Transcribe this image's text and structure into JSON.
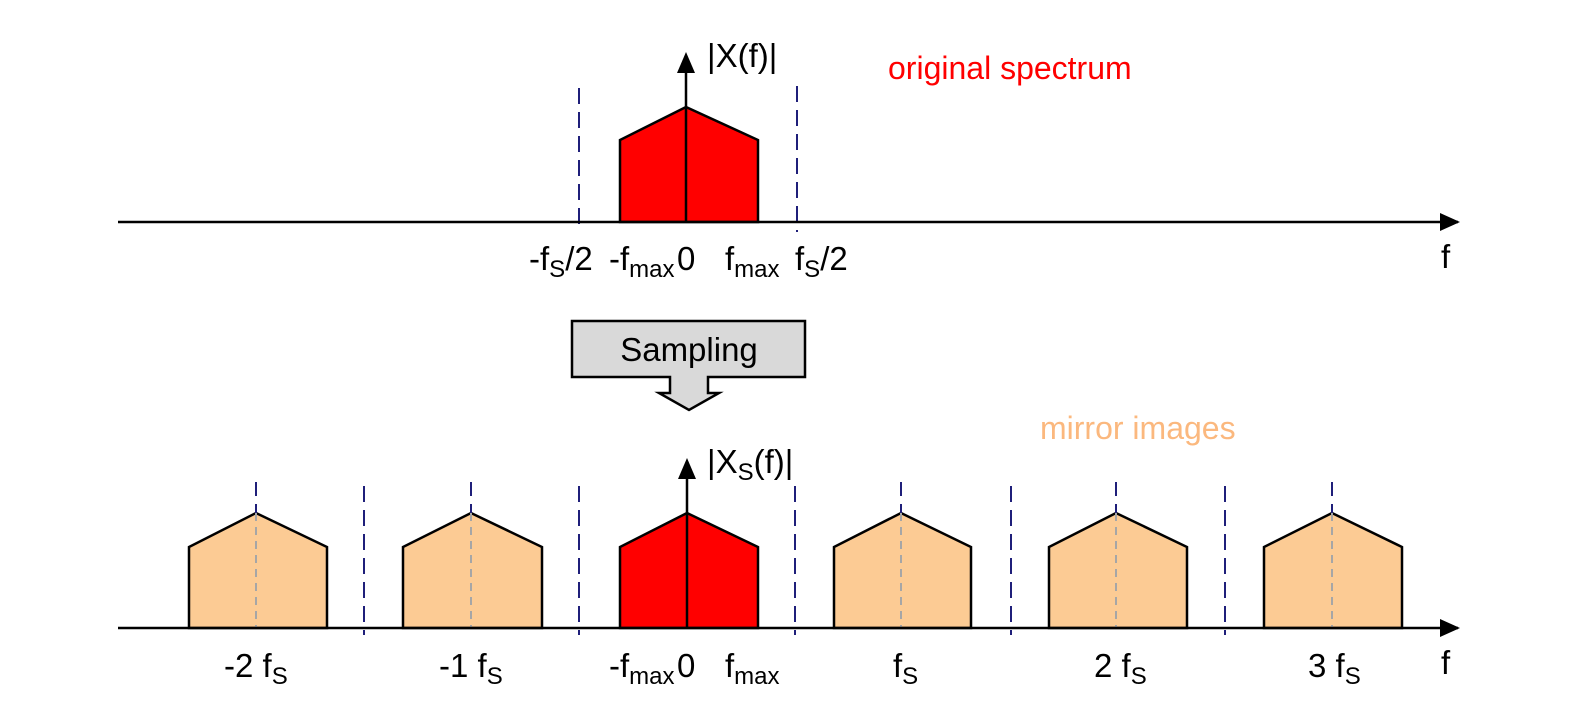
{
  "colors": {
    "original": "#ff0000",
    "mirror": "#fccb94",
    "mirror_text": "#fbb87e",
    "nyquist_line": "#1f1f7a",
    "center_line": "#a6a6a6",
    "sampling_box": "#d9d9d9"
  },
  "top": {
    "y_label": {
      "main": "|X(f)|"
    },
    "x_label": "f",
    "annotation": "original spectrum",
    "ticks": {
      "neg_half": {
        "pre": "-f",
        "sub": "S",
        "post": "/2"
      },
      "neg_fmax": {
        "pre": "-f",
        "sub": "max"
      },
      "zero": "0",
      "fmax": {
        "pre": "f",
        "sub": "max"
      },
      "pos_half": {
        "pre": "f",
        "sub": "S",
        "post": "/2"
      }
    }
  },
  "sampling": {
    "label": "Sampling"
  },
  "bottom": {
    "y_label": {
      "pre": "|X",
      "sub": "S",
      "post": "(f)|"
    },
    "x_label": "f",
    "annotation": "mirror images",
    "ticks": {
      "m2": {
        "pre": "-2 f",
        "sub": "S"
      },
      "m1": {
        "pre": "-1 f",
        "sub": "S"
      },
      "neg_fmax": {
        "pre": "-f",
        "sub": "max"
      },
      "zero": "0",
      "fmax": {
        "pre": "f",
        "sub": "max"
      },
      "p1": {
        "pre": "f",
        "sub": "S"
      },
      "p2": {
        "pre": "2 f",
        "sub": "S"
      },
      "p3": {
        "pre": "3 f",
        "sub": "S"
      }
    }
  }
}
